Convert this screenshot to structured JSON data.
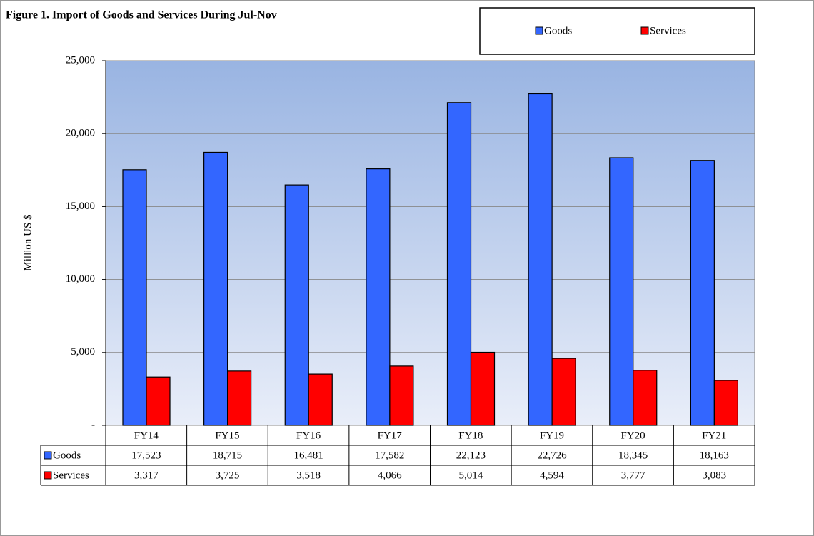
{
  "chart_data": {
    "type": "bar",
    "title": "Figure 1. Import of Goods and Services  During Jul-Nov",
    "y_label": "Million US $",
    "categories": [
      "FY14",
      "FY15",
      "FY16",
      "FY17",
      "FY18",
      "FY19",
      "FY20",
      "FY21"
    ],
    "series": [
      {
        "name": "Goods",
        "color": "#3366ff",
        "values": [
          17523,
          18715,
          16481,
          17582,
          22123,
          22726,
          18345,
          18163
        ],
        "value_labels": [
          "17,523",
          "18,715",
          "16,481",
          "17,582",
          "22,123",
          "22,726",
          "18,345",
          "18,163"
        ]
      },
      {
        "name": "Services",
        "color": "#ff0000",
        "values": [
          3317,
          3725,
          3518,
          4066,
          5014,
          4594,
          3777,
          3083
        ],
        "value_labels": [
          "3,317",
          "3,725",
          "3,518",
          "4,066",
          "5,014",
          "4,594",
          "3,777",
          "3,083"
        ]
      }
    ],
    "ylim": [
      0,
      25000
    ],
    "yticks": [
      {
        "value": 0,
        "label": "-"
      },
      {
        "value": 5000,
        "label": "5,000"
      },
      {
        "value": 10000,
        "label": "10,000"
      },
      {
        "value": 15000,
        "label": "15,000"
      },
      {
        "value": 20000,
        "label": "20,000"
      },
      {
        "value": 25000,
        "label": "25,000"
      }
    ],
    "grid": true,
    "legend": "top-right"
  }
}
